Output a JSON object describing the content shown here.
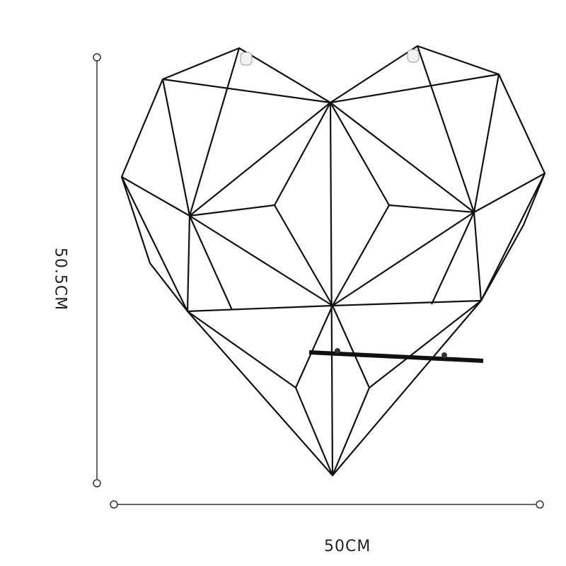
{
  "dimensions": {
    "height": "50.5CM",
    "width": "50CM"
  },
  "colors": {
    "wire": "#111111",
    "dimension_line": "#333333",
    "background": "#ffffff"
  }
}
